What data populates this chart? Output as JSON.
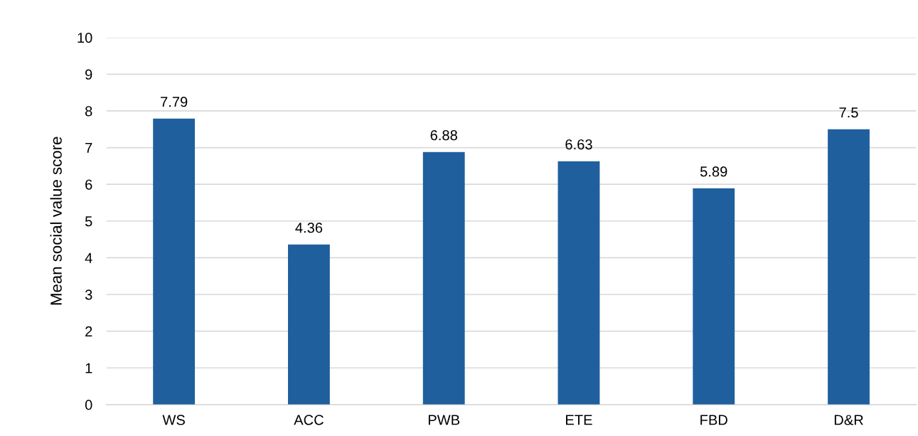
{
  "chart_data": {
    "type": "bar",
    "ylabel": "Mean social value score",
    "categories": [
      "WS",
      "ACC",
      "PWB",
      "ETE",
      "FBD",
      "D&R"
    ],
    "values": [
      7.79,
      4.36,
      6.88,
      6.63,
      5.89,
      7.5
    ],
    "color": "#1f5f9e",
    "ylim": [
      0,
      10
    ],
    "yticks": [
      0,
      1,
      2,
      3,
      4,
      5,
      6,
      7,
      8,
      9,
      10
    ],
    "grid": "y",
    "data_labels": true
  }
}
